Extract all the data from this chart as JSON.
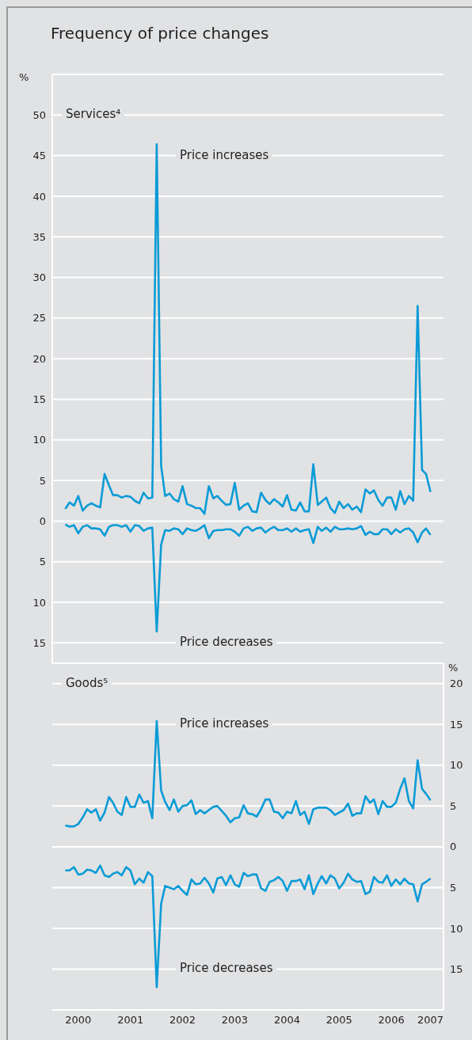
{
  "chart_data": [
    {
      "type": "line",
      "title": "Frequency of price changes",
      "subtitle": "Services⁴",
      "ylabel": "%",
      "x": [
        "2000-04",
        "2000-05",
        "2000-06",
        "2000-07",
        "2000-08",
        "2000-09",
        "2000-10",
        "2000-11",
        "2000-12",
        "2001-01",
        "2001-02",
        "2001-03",
        "2001-04",
        "2001-05",
        "2001-06",
        "2001-07",
        "2001-08",
        "2001-09",
        "2001-10",
        "2001-11",
        "2001-12",
        "2002-01",
        "2002-02",
        "2002-03",
        "2002-04",
        "2002-05",
        "2002-06",
        "2002-07",
        "2002-08",
        "2002-09",
        "2002-10",
        "2002-11",
        "2002-12",
        "2003-01",
        "2003-02",
        "2003-03",
        "2003-04",
        "2003-05",
        "2003-06",
        "2003-07",
        "2003-08",
        "2003-09",
        "2003-10",
        "2003-11",
        "2003-12",
        "2004-01",
        "2004-02",
        "2004-03",
        "2004-04",
        "2004-05",
        "2004-06",
        "2004-07",
        "2004-08",
        "2004-09",
        "2004-10",
        "2004-11",
        "2004-12",
        "2005-01",
        "2005-02",
        "2005-03",
        "2005-04",
        "2005-05",
        "2005-06",
        "2005-07",
        "2005-08",
        "2005-09",
        "2005-10",
        "2005-11",
        "2005-12",
        "2006-01",
        "2006-02",
        "2006-03",
        "2006-04",
        "2006-05",
        "2006-06",
        "2006-07",
        "2006-08",
        "2006-09",
        "2006-10",
        "2006-11",
        "2006-12",
        "2007-01",
        "2007-02",
        "2007-03",
        "2007-04"
      ],
      "series": [
        {
          "name": "Price increases",
          "color": "#0a9bd6",
          "values": [
            1.5,
            2.3,
            1.9,
            3.1,
            1.3,
            1.9,
            2.2,
            1.9,
            1.7,
            5.8,
            4.4,
            3.2,
            3.2,
            2.9,
            3.1,
            3.0,
            2.5,
            2.2,
            3.5,
            2.8,
            2.9,
            46.4,
            6.8,
            3.1,
            3.4,
            2.7,
            2.4,
            4.3,
            2.1,
            1.9,
            1.6,
            1.6,
            0.9,
            4.3,
            2.8,
            3.1,
            2.5,
            2.0,
            2.1,
            4.7,
            1.4,
            1.9,
            2.2,
            1.2,
            1.1,
            3.5,
            2.6,
            2.1,
            2.7,
            2.3,
            1.8,
            3.2,
            1.4,
            1.3,
            2.3,
            1.2,
            1.2,
            7.0,
            2.0,
            2.4,
            2.9,
            1.6,
            1.0,
            2.4,
            1.6,
            2.1,
            1.4,
            1.8,
            1.1,
            3.9,
            3.4,
            3.8,
            2.6,
            1.9,
            2.9,
            2.9,
            1.4,
            3.7,
            2.1,
            3.1,
            2.5,
            26.5,
            6.3,
            5.8,
            3.6
          ]
        },
        {
          "name": "Price decreases",
          "color": "#0a9bd6",
          "values": [
            -0.4,
            -0.7,
            -0.5,
            -1.5,
            -0.7,
            -0.5,
            -0.9,
            -0.9,
            -1.0,
            -1.8,
            -0.7,
            -0.5,
            -0.5,
            -0.7,
            -0.5,
            -1.3,
            -0.5,
            -0.6,
            -1.2,
            -0.9,
            -0.8,
            -13.6,
            -2.9,
            -1.1,
            -1.2,
            -0.9,
            -1.0,
            -1.6,
            -0.9,
            -1.1,
            -1.2,
            -0.9,
            -0.5,
            -2.1,
            -1.2,
            -1.1,
            -1.1,
            -1.0,
            -1.0,
            -1.3,
            -1.8,
            -0.9,
            -0.7,
            -1.2,
            -0.9,
            -0.8,
            -1.4,
            -1.0,
            -0.7,
            -1.1,
            -1.1,
            -0.9,
            -1.3,
            -0.9,
            -1.3,
            -1.1,
            -1.0,
            -2.7,
            -0.7,
            -1.2,
            -0.8,
            -1.3,
            -0.7,
            -1.0,
            -1.0,
            -0.9,
            -1.0,
            -0.9,
            -0.6,
            -1.7,
            -1.3,
            -1.6,
            -1.6,
            -1.0,
            -1.0,
            -1.6,
            -1.0,
            -1.4,
            -1.0,
            -0.9,
            -1.4,
            -2.6,
            -1.4,
            -0.9,
            -1.7
          ]
        }
      ],
      "xlim": [
        "2000-01",
        "2007-07"
      ],
      "ylim": [
        -17.5,
        55
      ],
      "yticks": [
        50,
        45,
        40,
        35,
        30,
        25,
        20,
        15,
        10,
        5,
        0,
        {
          "value": -5,
          "label": "5"
        },
        {
          "value": -10,
          "label": "10"
        },
        {
          "value": -15,
          "label": "15"
        }
      ],
      "tick_labels": "y",
      "grid": "y",
      "marker": "none",
      "line_style": "solid"
    },
    {
      "type": "line",
      "subtitle": "Goods⁵",
      "y2label": "%",
      "x": [
        "2000-04",
        "2000-05",
        "2000-06",
        "2000-07",
        "2000-08",
        "2000-09",
        "2000-10",
        "2000-11",
        "2000-12",
        "2001-01",
        "2001-02",
        "2001-03",
        "2001-04",
        "2001-05",
        "2001-06",
        "2001-07",
        "2001-08",
        "2001-09",
        "2001-10",
        "2001-11",
        "2001-12",
        "2002-01",
        "2002-02",
        "2002-03",
        "2002-04",
        "2002-05",
        "2002-06",
        "2002-07",
        "2002-08",
        "2002-09",
        "2002-10",
        "2002-11",
        "2002-12",
        "2003-01",
        "2003-02",
        "2003-03",
        "2003-04",
        "2003-05",
        "2003-06",
        "2003-07",
        "2003-08",
        "2003-09",
        "2003-10",
        "2003-11",
        "2003-12",
        "2004-01",
        "2004-02",
        "2004-03",
        "2004-04",
        "2004-05",
        "2004-06",
        "2004-07",
        "2004-08",
        "2004-09",
        "2004-10",
        "2004-11",
        "2004-12",
        "2005-01",
        "2005-02",
        "2005-03",
        "2005-04",
        "2005-05",
        "2005-06",
        "2005-07",
        "2005-08",
        "2005-09",
        "2005-10",
        "2005-11",
        "2005-12",
        "2006-01",
        "2006-02",
        "2006-03",
        "2006-04",
        "2006-05",
        "2006-06",
        "2006-07",
        "2006-08",
        "2006-09",
        "2006-10",
        "2006-11",
        "2006-12",
        "2007-01",
        "2007-02",
        "2007-03",
        "2007-04"
      ],
      "series": [
        {
          "name": "Price increases",
          "color": "#0a9bd6",
          "axis": "y2",
          "values": [
            2.6,
            2.5,
            2.5,
            2.8,
            3.6,
            4.6,
            4.2,
            4.6,
            3.2,
            4.2,
            6.1,
            5.4,
            4.3,
            3.9,
            6.1,
            4.9,
            4.9,
            6.4,
            5.4,
            5.6,
            3.5,
            15.4,
            6.9,
            5.5,
            4.5,
            5.8,
            4.3,
            5.0,
            5.1,
            5.7,
            4.0,
            4.5,
            4.1,
            4.5,
            4.9,
            5.0,
            4.4,
            3.8,
            3.0,
            3.5,
            3.6,
            5.1,
            4.1,
            4.0,
            3.7,
            4.6,
            5.8,
            5.8,
            4.3,
            4.2,
            3.5,
            4.3,
            4.1,
            5.6,
            3.9,
            4.3,
            2.8,
            4.6,
            4.8,
            4.8,
            4.8,
            4.5,
            3.9,
            4.2,
            4.5,
            5.3,
            3.8,
            4.1,
            4.1,
            6.2,
            5.4,
            5.8,
            4.0,
            5.6,
            4.9,
            4.9,
            5.4,
            7.1,
            8.4,
            5.6,
            4.7,
            10.6,
            7.1,
            6.5,
            5.7
          ]
        },
        {
          "name": "Price decreases",
          "color": "#0a9bd6",
          "axis": "y2",
          "values": [
            -2.9,
            -2.9,
            -2.5,
            -3.4,
            -3.3,
            -2.8,
            -2.9,
            -3.2,
            -2.3,
            -3.5,
            -3.7,
            -3.3,
            -3.1,
            -3.5,
            -2.5,
            -2.9,
            -4.6,
            -3.9,
            -4.4,
            -3.1,
            -3.6,
            -17.2,
            -7.0,
            -4.8,
            -5.0,
            -5.2,
            -4.8,
            -5.4,
            -5.9,
            -4.0,
            -4.6,
            -4.5,
            -3.8,
            -4.5,
            -5.6,
            -3.9,
            -3.7,
            -4.7,
            -3.5,
            -4.6,
            -4.9,
            -3.2,
            -3.6,
            -3.4,
            -3.4,
            -5.1,
            -5.4,
            -4.3,
            -4.1,
            -3.7,
            -4.2,
            -5.4,
            -4.2,
            -4.2,
            -4.0,
            -5.2,
            -3.5,
            -5.8,
            -4.5,
            -3.6,
            -4.5,
            -3.5,
            -3.9,
            -5.1,
            -4.4,
            -3.3,
            -4.0,
            -4.3,
            -4.2,
            -5.8,
            -5.5,
            -3.7,
            -4.3,
            -4.4,
            -3.5,
            -4.8,
            -4.0,
            -4.6,
            -3.9,
            -4.5,
            -4.6,
            -6.7,
            -4.6,
            -4.3,
            -3.9
          ]
        }
      ],
      "xlim": [
        "2000-01",
        "2007-07"
      ],
      "xticks": [
        {
          "value": "2000-07",
          "label": "2000"
        },
        {
          "value": "2001-07",
          "label": "2001"
        },
        {
          "value": "2002-07",
          "label": "2002"
        },
        {
          "value": "2003-07",
          "label": "2003"
        },
        {
          "value": "2004-07",
          "label": "2004"
        },
        {
          "value": "2005-07",
          "label": "2005"
        },
        {
          "value": "2006-07",
          "label": "2006"
        },
        {
          "value": "2007-04",
          "label": "2007"
        }
      ],
      "y2lim": [
        -20,
        22.5
      ],
      "y2ticks": [
        20,
        15,
        10,
        5,
        0,
        {
          "value": -5,
          "label": "5"
        },
        {
          "value": -10,
          "label": "10"
        },
        {
          "value": -15,
          "label": "15"
        }
      ],
      "grid": "y",
      "marker": "none",
      "line_style": "solid"
    }
  ]
}
